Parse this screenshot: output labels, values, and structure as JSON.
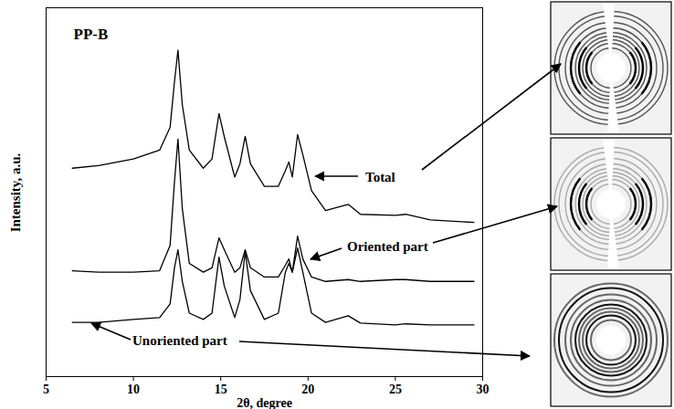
{
  "chart_data": {
    "type": "line",
    "annotations": [
      "PP-B"
    ],
    "x_label": "2θ, degree",
    "y_label": "Intensity, a.u.",
    "xlim": [
      5,
      30
    ],
    "xticks": [
      5,
      10,
      15,
      20,
      25,
      30
    ],
    "ylim": [
      0,
      100
    ],
    "yticks": [],
    "tick_labels": "x",
    "x": [
      6.5,
      8,
      10,
      11.5,
      12.1,
      12.35,
      12.55,
      12.8,
      13.2,
      14.0,
      14.5,
      14.9,
      15.2,
      15.8,
      16.1,
      16.4,
      16.7,
      17.5,
      18.3,
      18.7,
      18.9,
      19.1,
      19.4,
      19.7,
      20.2,
      21,
      22.3,
      23,
      25,
      25.6,
      27,
      29.5
    ],
    "series": [
      {
        "name": "Total",
        "color": "#000000",
        "values": [
          56.5,
          57.2,
          59.0,
          61.4,
          67.6,
          79.9,
          88.5,
          73.7,
          61.4,
          56.5,
          59.0,
          71.3,
          65.1,
          54.1,
          57.7,
          65.1,
          57.7,
          51.6,
          51.6,
          55.8,
          58.2,
          54.1,
          65.6,
          60.2,
          50.4,
          45.0,
          46.7,
          44.0,
          43.7,
          44.0,
          42.5,
          41.8
        ]
      },
      {
        "name": "Oriented part",
        "color": "#000000",
        "values": [
          28.7,
          28.3,
          28.3,
          28.7,
          35.6,
          52.8,
          64.4,
          45.5,
          30.7,
          28.3,
          29.5,
          37.6,
          34.4,
          28.3,
          29.5,
          34.4,
          29.5,
          27.0,
          27.0,
          30.2,
          31.9,
          28.3,
          38.1,
          31.9,
          27.0,
          25.8,
          26.3,
          25.8,
          26.3,
          26.3,
          25.8,
          25.8
        ]
      },
      {
        "name": "Unoriented part",
        "color": "#000000",
        "values": [
          14.7,
          14.7,
          15.5,
          16.0,
          19.7,
          29.5,
          34.4,
          25.8,
          17.2,
          15.5,
          17.2,
          32.4,
          24.6,
          16.0,
          20.9,
          33.9,
          23.3,
          15.5,
          17.2,
          28.3,
          30.7,
          28.3,
          34.9,
          28.3,
          17.2,
          14.7,
          16.5,
          14.5,
          14.0,
          14.3,
          14.0,
          14.0
        ]
      }
    ]
  }
}
